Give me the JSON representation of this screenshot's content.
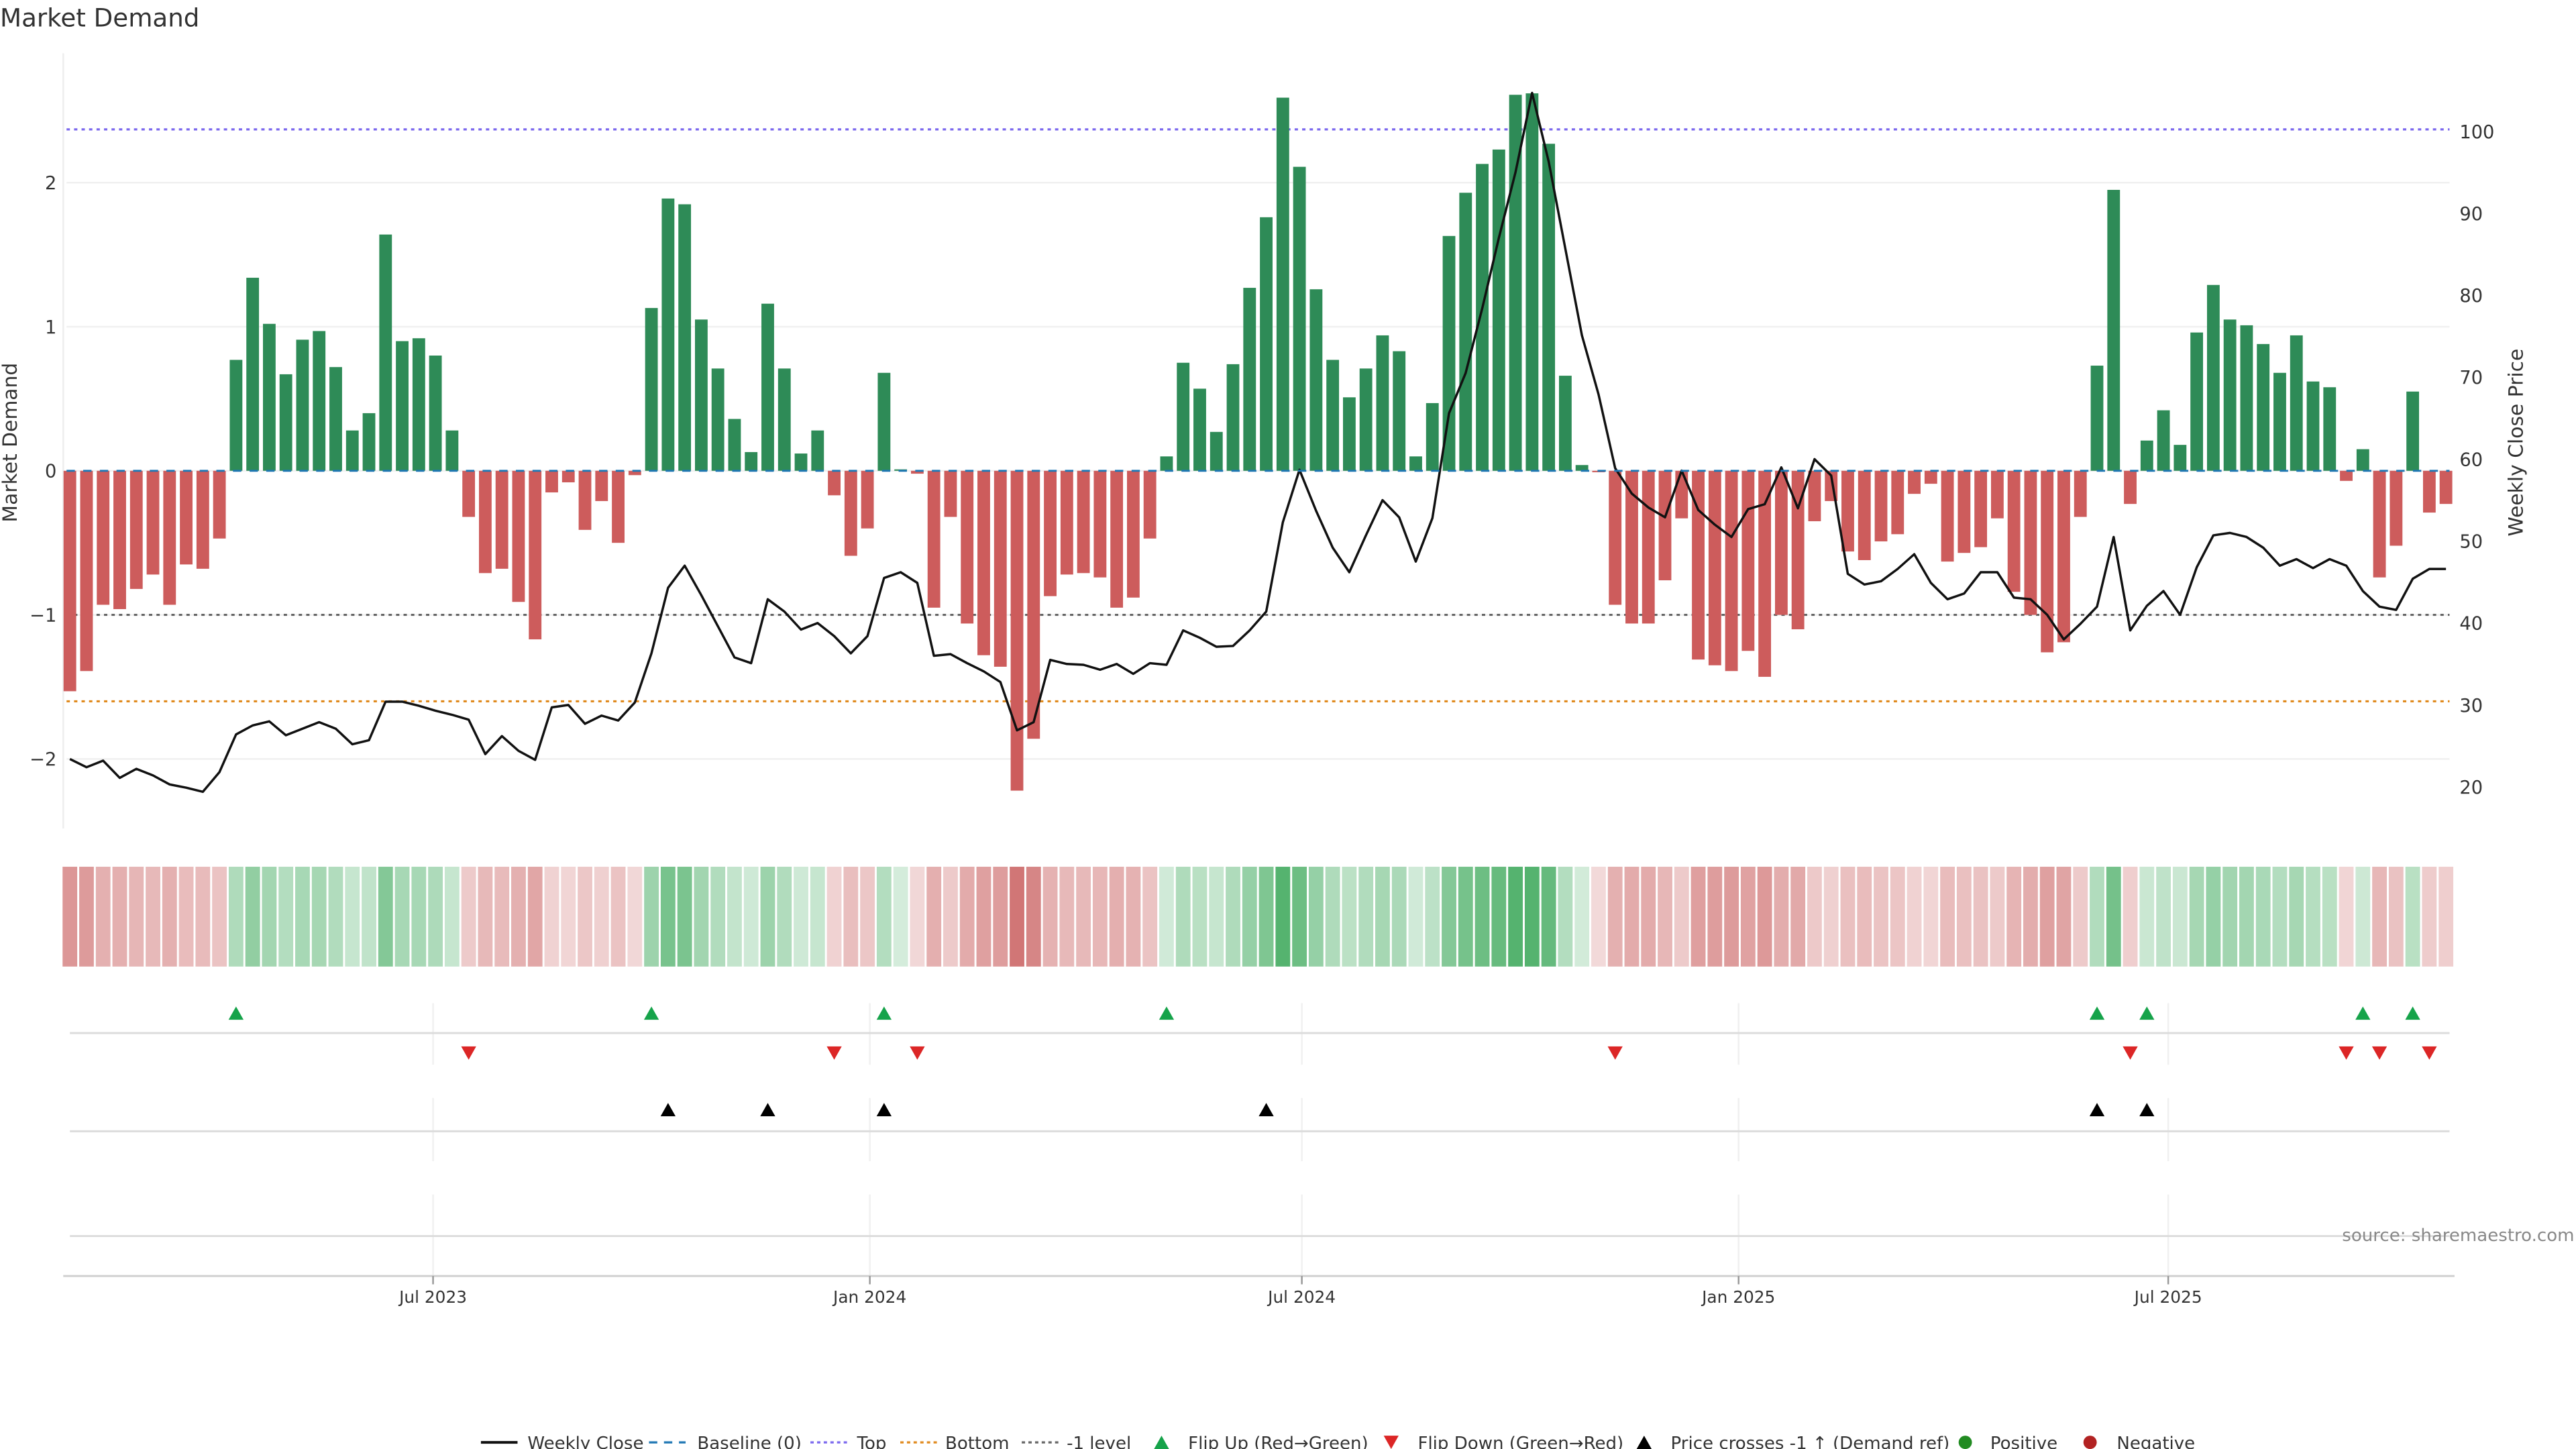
{
  "chart_data": {
    "type": "bar",
    "title": "Market Demand",
    "ylabel": "Market Demand",
    "y2label": "Weekly Close Price",
    "ylim": [
      -2.5,
      2.95
    ],
    "y2lim": [
      14.4,
      118
    ],
    "start_date": "2023-01-29",
    "frequency": "weekly",
    "x_ticks": [
      {
        "date": "2023-07-01",
        "label": "Jul 2023"
      },
      {
        "date": "2024-01-01",
        "label": "Jan 2024"
      },
      {
        "date": "2024-07-01",
        "label": "Jul 2024"
      },
      {
        "date": "2025-01-01",
        "label": "Jan 2025"
      },
      {
        "date": "2025-07-01",
        "label": "Jul 2025"
      }
    ],
    "y_ticks": [
      -2,
      -1,
      0,
      1,
      2
    ],
    "y2_ticks": [
      20,
      30,
      40,
      50,
      60,
      70,
      80,
      90,
      100
    ],
    "reference_lines": {
      "top": 2.37,
      "bottom": -1.6,
      "minus_one": -1,
      "baseline": 0
    },
    "series": [
      {
        "name": "Market Demand",
        "axis": "left",
        "type": "bar",
        "values": [
          -1.53,
          -1.39,
          -0.93,
          -0.96,
          -0.82,
          -0.72,
          -0.93,
          -0.65,
          -0.68,
          -0.47,
          0.77,
          1.34,
          1.02,
          0.67,
          0.91,
          0.97,
          0.72,
          0.28,
          0.4,
          1.64,
          0.9,
          0.92,
          0.8,
          0.28,
          -0.32,
          -0.71,
          -0.68,
          -0.91,
          -1.17,
          -0.15,
          -0.08,
          -0.41,
          -0.21,
          -0.5,
          -0.03,
          1.13,
          1.89,
          1.85,
          1.05,
          0.71,
          0.36,
          0.13,
          1.16,
          0.71,
          0.12,
          0.28,
          -0.17,
          -0.59,
          -0.4,
          0.68,
          0.01,
          -0.02,
          -0.95,
          -0.32,
          -1.06,
          -1.28,
          -1.36,
          -2.22,
          -1.86,
          -0.87,
          -0.72,
          -0.71,
          -0.74,
          -0.95,
          -0.88,
          -0.47,
          0.1,
          0.75,
          0.57,
          0.27,
          0.74,
          1.27,
          1.76,
          2.59,
          2.11,
          1.26,
          0.77,
          0.51,
          0.71,
          0.94,
          0.83,
          0.1,
          0.47,
          1.63,
          1.93,
          2.13,
          2.23,
          2.61,
          2.62,
          2.27,
          0.66,
          0.04,
          -0.01,
          -0.93,
          -1.06,
          -1.06,
          -0.76,
          -0.33,
          -1.31,
          -1.35,
          -1.39,
          -1.25,
          -1.43,
          -1.0,
          -1.1,
          -0.35,
          -0.21,
          -0.56,
          -0.62,
          -0.49,
          -0.44,
          -0.16,
          -0.09,
          -0.63,
          -0.57,
          -0.53,
          -0.33,
          -0.84,
          -1.0,
          -1.26,
          -1.19,
          -0.32,
          0.73,
          1.95,
          -0.23,
          0.21,
          0.42,
          0.18,
          0.96,
          1.29,
          1.05,
          1.01,
          0.88,
          0.68,
          0.94,
          0.62,
          0.58,
          -0.07,
          0.15,
          -0.74,
          -0.52,
          0.55,
          -0.29,
          -0.23
        ]
      },
      {
        "name": "Weekly Close",
        "axis": "right",
        "type": "line",
        "values": [
          23.4,
          22.4,
          23.2,
          21.1,
          22.2,
          21.4,
          20.3,
          19.9,
          19.4,
          21.8,
          26.4,
          27.5,
          28.0,
          26.3,
          27.1,
          27.9,
          27.1,
          25.2,
          25.7,
          30.4,
          30.4,
          29.9,
          29.3,
          28.8,
          28.2,
          24.0,
          26.2,
          24.4,
          23.3,
          29.7,
          30.0,
          27.7,
          28.7,
          28.1,
          30.3,
          36.3,
          44.3,
          47.0,
          43.4,
          39.6,
          35.8,
          35.1,
          42.9,
          41.4,
          39.2,
          40.0,
          38.4,
          36.3,
          38.4,
          45.5,
          46.2,
          44.9,
          36.0,
          36.2,
          35.1,
          34.1,
          32.8,
          26.9,
          27.9,
          35.5,
          35.0,
          34.9,
          34.3,
          35.0,
          33.8,
          35.1,
          34.9,
          39.1,
          38.2,
          37.1,
          37.2,
          39.1,
          41.4,
          52.3,
          58.7,
          53.7,
          49.2,
          46.2,
          50.7,
          55.0,
          52.9,
          47.5,
          52.8,
          65.6,
          70.5,
          78.4,
          87.0,
          95.0,
          104.7,
          96.3,
          85.7,
          75.1,
          67.9,
          58.9,
          55.8,
          54.1,
          52.9,
          58.6,
          53.8,
          52.0,
          50.5,
          53.9,
          54.5,
          59.0,
          54.0,
          60.0,
          58.0,
          46.0,
          44.7,
          45.1,
          46.6,
          48.4,
          44.9,
          42.9,
          43.6,
          46.2,
          46.2,
          43.1,
          42.9,
          41.0,
          38.0,
          39.9,
          42.0,
          50.5,
          39.1,
          42.1,
          43.9,
          41.0,
          46.8,
          50.7,
          51.0,
          50.5,
          49.2,
          47.0,
          47.8,
          46.7,
          47.8,
          47.0,
          43.9,
          42.0,
          41.6,
          45.4,
          46.6,
          46.6
        ]
      }
    ],
    "events": {
      "flip_up_weeks": [
        10,
        35,
        49,
        66,
        122,
        125,
        138,
        141
      ],
      "flip_down_weeks": [
        24,
        46,
        51,
        93,
        124,
        137,
        139,
        142
      ],
      "price_cross_weeks": [
        36,
        42,
        49,
        72,
        122,
        125
      ]
    },
    "legend": {
      "placement": "bottom",
      "items": [
        "Weekly Close",
        "Baseline (0)",
        "Top",
        "Bottom",
        "-1 level",
        "Flip Up (Red→Green)",
        "Flip Down (Green→Red)",
        "Price crosses -1 ↑ (Demand ref)",
        "Positive",
        "Negative"
      ]
    },
    "annotation": "source: sharemaestro.com"
  },
  "colors": {
    "positive_bar": "#2e8b57",
    "negative_bar": "#cd5c5c",
    "line": "#111111",
    "baseline": "#1f77b4",
    "top": "#7b68ee",
    "bottom": "#e08a1e",
    "minus_one": "#666666",
    "flip_up": "#16a34a",
    "flip_down": "#dc2626",
    "cross": "#000000",
    "positive_dot": "#228b22",
    "negative_dot": "#b22222"
  }
}
